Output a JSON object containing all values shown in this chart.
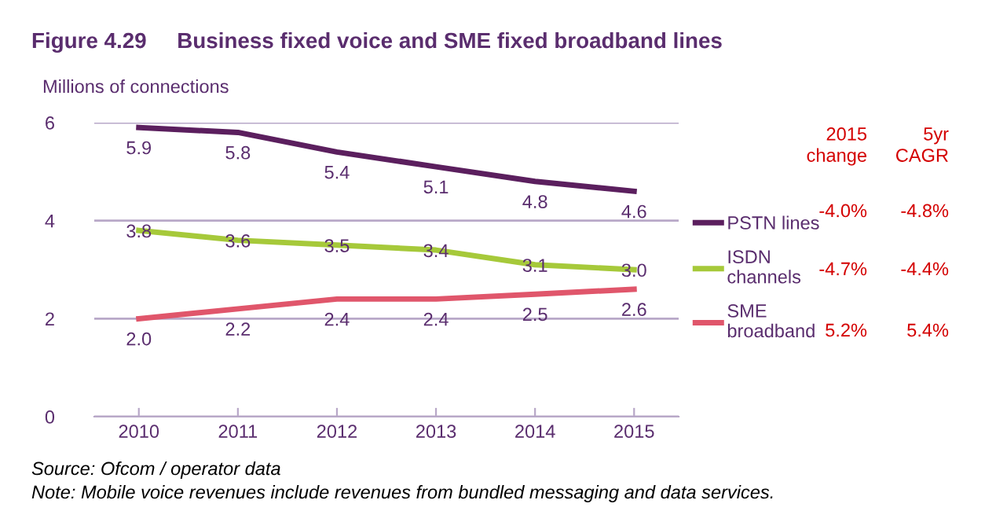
{
  "chart_data": {
    "type": "line",
    "title": "Figure 4.29     Business fixed voice and SME fixed broadband lines",
    "ylabel": "Millions of connections",
    "categories": [
      "2010",
      "2011",
      "2012",
      "2013",
      "2014",
      "2015"
    ],
    "series": [
      {
        "name": "PSTN lines",
        "color": "#5b1f5e",
        "values": [
          5.9,
          5.8,
          5.4,
          5.1,
          4.8,
          4.6
        ],
        "value_labels": [
          "5.9",
          "5.8",
          "5.4",
          "5.1",
          "4.8",
          "4.6"
        ]
      },
      {
        "name": "ISDN channels",
        "color": "#a6c93a",
        "values": [
          3.8,
          3.6,
          3.5,
          3.4,
          3.1,
          3.0
        ],
        "value_labels": [
          "3.8",
          "3.6",
          "3.5",
          "3.4",
          "3.1",
          "3.0"
        ]
      },
      {
        "name": "SME broadband",
        "color": "#e0566b",
        "values": [
          2.0,
          2.2,
          2.4,
          2.4,
          2.5,
          2.6
        ],
        "value_labels": [
          "2.0",
          "2.2",
          "2.4",
          "2.4",
          "2.5",
          "2.6"
        ]
      }
    ],
    "ylim": [
      0,
      6
    ],
    "yticks": [
      0,
      2,
      4,
      6
    ],
    "grid": "y",
    "legend": "right",
    "marker": "none",
    "line_style": "solid",
    "annotations": [
      "2015\nchange",
      "5yr\nCAGR",
      "-4.0%",
      "-4.8%",
      "-4.7%",
      "-4.4%",
      "5.2%",
      "5.4%",
      "Source: Ofcom / operator data",
      "Note: Mobile voice revenues include revenues from bundled messaging and data services."
    ]
  }
}
